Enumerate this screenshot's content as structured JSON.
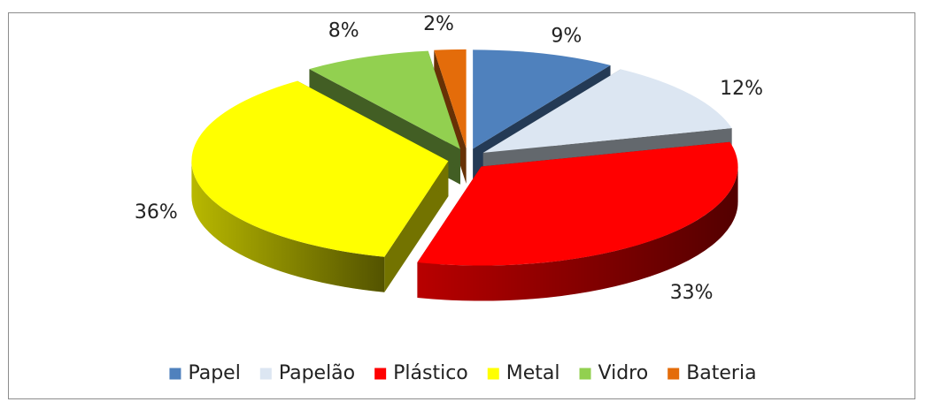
{
  "chart_data": {
    "type": "pie",
    "style": "3d-exploded",
    "title": "",
    "categories": [
      "Papel",
      "Papelão",
      "Plástico",
      "Metal",
      "Vidro",
      "Bateria"
    ],
    "values": [
      9,
      12,
      33,
      36,
      8,
      2
    ],
    "value_labels": [
      "9%",
      "12%",
      "33%",
      "36%",
      "8%",
      "2%"
    ],
    "colors": [
      "#4f81bd",
      "#dce6f2",
      "#ff0000",
      "#ffff00",
      "#92d050",
      "#e46c0a"
    ],
    "legend_position": "bottom",
    "unit": "%"
  }
}
